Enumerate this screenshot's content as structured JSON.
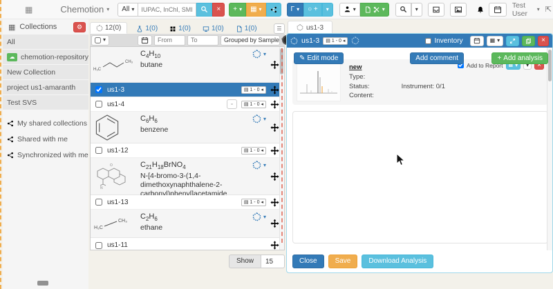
{
  "navbar": {
    "brand": "Chemotion",
    "search": {
      "scope": "All",
      "placeholder": "IUPAC, InChI, SMILES, RInC"
    },
    "user": "Test User"
  },
  "sidebar": {
    "title": "Collections",
    "collections": [
      "All",
      "chemotion-repository.net",
      "New Collection",
      "project us1-amaranth",
      "Test SVS"
    ],
    "shared": [
      "My shared collections",
      "Shared with me",
      "Synchronized with me"
    ]
  },
  "elements": {
    "tabs": [
      {
        "icon": "sample-icon",
        "label": "12(0)"
      },
      {
        "icon": "reaction-flask-icon",
        "label": "1(0)"
      },
      {
        "icon": "wellplate-icon",
        "label": "1(0)"
      },
      {
        "icon": "screen-icon",
        "label": "1(0)"
      },
      {
        "icon": "research-plan-icon",
        "label": "1(0)"
      }
    ],
    "toolbar": {
      "from_placeholder": "From",
      "to_placeholder": "To",
      "group_by": "Grouped by Sample"
    },
    "groups": [
      {
        "formula": "C4H10",
        "name": "butane"
      },
      {
        "formula": "C6H6",
        "name": "benzene"
      },
      {
        "formula": "C21H18BrNO4",
        "name": "N-[4-bromo-3-(1,4-dimethoxynaphthalene-2-carbonyl)phenyl]acetamide"
      },
      {
        "formula": "C2H6",
        "name": "ethane"
      }
    ],
    "rows": [
      {
        "id": "us1-3",
        "badge": "1 - 0"
      },
      {
        "id": "us1-4",
        "badge": "1 - 0"
      },
      {
        "id": "us1-12",
        "badge": "1 - 0"
      },
      {
        "id": "us1-13",
        "badge": "1 - 0"
      },
      {
        "id": "us1-11"
      }
    ],
    "pagination": {
      "show": "Show",
      "per_page": "15"
    }
  },
  "detail": {
    "tab": "us1-3",
    "header": {
      "title": "us1-3",
      "badge": "1 - 0",
      "inventory": "Inventory"
    },
    "edit_mode": "Edit mode",
    "add_comment": "Add comment",
    "add_analysis": "Add analysis",
    "analysis": {
      "title": "new",
      "type_label": "Type:",
      "status_label": "Status:",
      "instrument": "Instrument: 0/1",
      "content_label": "Content:",
      "add_to_report": "Add to Report"
    },
    "footer": {
      "close": "Close",
      "save": "Save",
      "download": "Download Analysis"
    }
  },
  "colors": {
    "primary": "#337ab7",
    "success": "#5cb85c",
    "info": "#5bc0de",
    "warning": "#f0ad4e",
    "danger": "#d9534f",
    "selected_row": "#337ab7"
  }
}
